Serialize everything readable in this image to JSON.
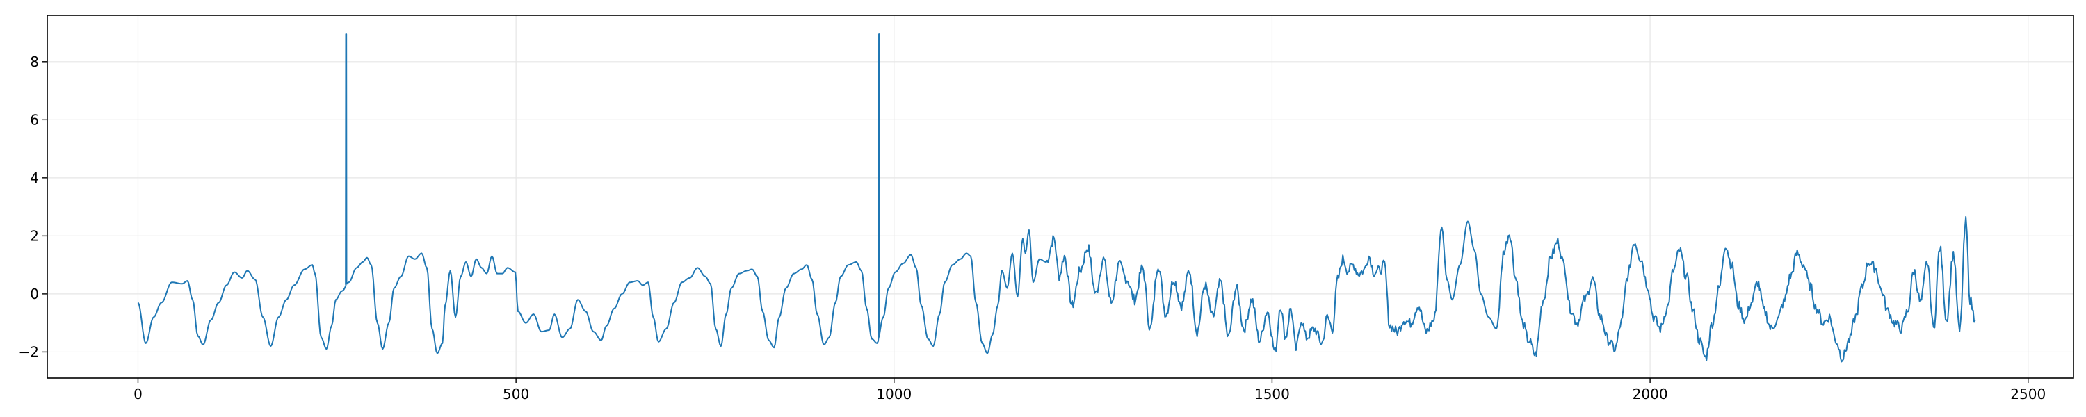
{
  "chart_data": {
    "type": "line",
    "title": "",
    "xlabel": "",
    "ylabel": "",
    "xlim": [
      -120,
      2560
    ],
    "ylim": [
      -2.9,
      9.6
    ],
    "x_ticks": [
      0,
      500,
      1000,
      1500,
      2000,
      2500
    ],
    "y_ticks": [
      -2,
      0,
      2,
      4,
      6,
      8
    ],
    "grid": true,
    "legend": "none",
    "colors": {
      "line": "#1f77b4",
      "grid": "#e6e6e6",
      "axes": "#000000"
    },
    "series": [
      {
        "knots": [
          [
            0,
            -0.3
          ],
          [
            15,
            -1.7
          ],
          [
            30,
            -0.8
          ],
          [
            45,
            -0.3
          ],
          [
            65,
            0.4
          ],
          [
            85,
            0.35
          ],
          [
            95,
            0.45
          ],
          [
            105,
            -0.2
          ],
          [
            115,
            -1.45
          ],
          [
            125,
            -1.75
          ],
          [
            140,
            -0.9
          ],
          [
            155,
            -0.3
          ],
          [
            170,
            0.3
          ],
          [
            185,
            0.75
          ],
          [
            200,
            0.55
          ],
          [
            210,
            0.8
          ],
          [
            225,
            0.5
          ],
          [
            240,
            -0.8
          ],
          [
            255,
            -1.8
          ],
          [
            270,
            -0.8
          ],
          [
            285,
            -0.2
          ],
          [
            300,
            0.3
          ],
          [
            320,
            0.85
          ],
          [
            335,
            1.0
          ],
          [
            340,
            0.7
          ],
          [
            352,
            -1.5
          ],
          [
            362,
            -1.9
          ],
          [
            372,
            -1.1
          ],
          [
            380,
            -0.2
          ],
          [
            392,
            0.1
          ],
          [
            405,
            0.4
          ],
          [
            420,
            0.9
          ],
          [
            432,
            1.1
          ],
          [
            440,
            1.25
          ],
          [
            448,
            1.0
          ],
          [
            460,
            -1.0
          ],
          [
            470,
            -1.9
          ],
          [
            482,
            -1.0
          ],
          [
            492,
            0.2
          ],
          [
            505,
            0.6
          ],
          [
            520,
            1.3
          ],
          [
            532,
            1.2
          ],
          [
            545,
            1.4
          ],
          [
            555,
            0.9
          ],
          [
            565,
            -1.2
          ],
          [
            575,
            -2.05
          ],
          [
            585,
            -1.7
          ],
          [
            590,
            -0.4
          ],
          [
            600,
            0.8
          ],
          [
            610,
            -0.8
          ],
          [
            620,
            0.6
          ],
          [
            630,
            1.1
          ],
          [
            640,
            0.6
          ],
          [
            650,
            1.2
          ],
          [
            660,
            0.9
          ],
          [
            670,
            0.7
          ],
          [
            680,
            1.3
          ],
          [
            690,
            0.7
          ],
          [
            700,
            0.7
          ],
          [
            710,
            0.9
          ],
          [
            725,
            0.75
          ],
          [
            730,
            -0.6
          ],
          [
            745,
            -1.0
          ],
          [
            760,
            -0.7
          ],
          [
            775,
            -1.3
          ],
          [
            790,
            -1.25
          ],
          [
            800,
            -0.7
          ],
          [
            815,
            -1.5
          ],
          [
            830,
            -1.2
          ],
          [
            845,
            -0.2
          ],
          [
            860,
            -0.6
          ],
          [
            875,
            -1.3
          ],
          [
            890,
            -1.6
          ],
          [
            900,
            -1.1
          ],
          [
            915,
            -0.5
          ],
          [
            930,
            0.0
          ],
          [
            945,
            0.4
          ],
          [
            960,
            0.45
          ],
          [
            970,
            0.3
          ],
          [
            980,
            0.4
          ],
          [
            990,
            -0.8
          ],
          [
            1000,
            -1.65
          ],
          [
            1015,
            -1.2
          ],
          [
            1030,
            -0.3
          ],
          [
            1045,
            0.4
          ],
          [
            1060,
            0.55
          ],
          [
            1075,
            0.9
          ],
          [
            1090,
            0.6
          ],
          [
            1100,
            0.35
          ],
          [
            1110,
            -1.2
          ],
          [
            1120,
            -1.8
          ],
          [
            1130,
            -0.7
          ],
          [
            1140,
            0.2
          ],
          [
            1155,
            0.7
          ],
          [
            1170,
            0.8
          ],
          [
            1180,
            0.85
          ],
          [
            1190,
            0.6
          ],
          [
            1200,
            -0.6
          ],
          [
            1212,
            -1.6
          ],
          [
            1222,
            -1.85
          ],
          [
            1232,
            -0.8
          ],
          [
            1245,
            0.2
          ],
          [
            1260,
            0.7
          ],
          [
            1275,
            0.85
          ],
          [
            1285,
            1.0
          ],
          [
            1295,
            0.5
          ],
          [
            1305,
            -0.7
          ],
          [
            1318,
            -1.75
          ],
          [
            1328,
            -1.5
          ],
          [
            1340,
            -0.3
          ],
          [
            1350,
            0.6
          ],
          [
            1365,
            1.0
          ],
          [
            1380,
            1.1
          ],
          [
            1390,
            0.8
          ],
          [
            1400,
            -0.5
          ],
          [
            1410,
            -1.55
          ],
          [
            1420,
            -1.7
          ],
          [
            1432,
            -0.8
          ],
          [
            1442,
            0.2
          ],
          [
            1455,
            0.75
          ],
          [
            1470,
            1.05
          ],
          [
            1485,
            1.35
          ],
          [
            1495,
            0.9
          ],
          [
            1505,
            -0.4
          ],
          [
            1518,
            -1.55
          ],
          [
            1528,
            -1.8
          ],
          [
            1540,
            -0.7
          ],
          [
            1550,
            0.4
          ],
          [
            1565,
            1.0
          ],
          [
            1580,
            1.2
          ],
          [
            1592,
            1.4
          ],
          [
            1600,
            1.3
          ],
          [
            1610,
            -0.3
          ],
          [
            1622,
            -1.7
          ],
          [
            1632,
            -2.05
          ],
          [
            1642,
            -1.4
          ],
          [
            1652,
            -0.4
          ],
          [
            1660,
            0.8
          ],
          [
            1670,
            0.2
          ],
          [
            1680,
            1.4
          ],
          [
            1690,
            -0.1
          ],
          [
            1700,
            1.9
          ],
          [
            1705,
            1.4
          ],
          [
            1712,
            2.2
          ],
          [
            1720,
            0.4
          ],
          [
            1732,
            1.2
          ],
          [
            1745,
            1.1
          ],
          [
            1760,
            1.9
          ],
          [
            1770,
            0.6
          ],
          [
            1780,
            1.3
          ],
          [
            1795,
            -0.4
          ],
          [
            1810,
            0.8
          ],
          [
            1825,
            1.6
          ],
          [
            1840,
            0.0
          ],
          [
            1855,
            1.2
          ],
          [
            1870,
            -0.3
          ],
          [
            1885,
            1.0
          ],
          [
            1900,
            0.5
          ],
          [
            1915,
            -0.2
          ],
          [
            1930,
            0.9
          ],
          [
            1945,
            -1.2
          ],
          [
            1960,
            1.0
          ],
          [
            1975,
            -0.7
          ],
          [
            1990,
            0.5
          ],
          [
            2005,
            -0.4
          ],
          [
            2020,
            0.8
          ],
          [
            2035,
            -1.3
          ],
          [
            2050,
            0.3
          ],
          [
            2065,
            -0.8
          ],
          [
            2080,
            0.4
          ],
          [
            2095,
            -1.5
          ],
          [
            2110,
            0.2
          ],
          [
            2125,
            -1.2
          ],
          [
            2140,
            -0.2
          ],
          [
            2155,
            -1.6
          ],
          [
            2170,
            -0.6
          ],
          [
            2185,
            -2.0
          ],
          [
            2195,
            -0.4
          ],
          [
            2205,
            -1.5
          ],
          [
            2215,
            -0.5
          ],
          [
            2225,
            -1.9
          ],
          [
            2235,
            -0.9
          ],
          [
            2245,
            -1.5
          ],
          [
            2260,
            -1.2
          ],
          [
            2275,
            -1.7
          ],
          [
            2285,
            -0.8
          ],
          [
            2295,
            -1.2
          ],
          [
            2305,
            0.5
          ],
          [
            2315,
            1.2
          ],
          [
            2325,
            0.8
          ],
          [
            2335,
            1.0
          ],
          [
            2345,
            0.7
          ],
          [
            2355,
            0.8
          ],
          [
            2365,
            1.3
          ],
          [
            2375,
            0.75
          ],
          [
            2385,
            0.8
          ],
          [
            2395,
            1.0
          ],
          [
            2405,
            -1.1
          ],
          [
            2420,
            -1.3
          ],
          [
            2432,
            -0.9
          ],
          [
            2445,
            -1.0
          ],
          [
            2460,
            -0.4
          ],
          [
            2475,
            -1.3
          ],
          [
            2490,
            -0.9
          ],
          [
            2505,
            2.3
          ],
          [
            2515,
            0.5
          ],
          [
            2525,
            -0.2
          ],
          [
            2540,
            1.0
          ],
          [
            2555,
            2.5
          ],
          [
            2568,
            1.5
          ],
          [
            2580,
            0.0
          ],
          [
            2595,
            -0.8
          ],
          [
            2610,
            -1.2
          ],
          [
            2625,
            1.5
          ],
          [
            2635,
            2.1
          ],
          [
            2648,
            0.5
          ],
          [
            2660,
            -1.0
          ],
          [
            2672,
            -1.6
          ],
          [
            2685,
            -2.1
          ],
          [
            2700,
            -0.2
          ],
          [
            2715,
            1.3
          ],
          [
            2728,
            1.8
          ],
          [
            2740,
            1.0
          ],
          [
            2752,
            -0.5
          ],
          [
            2765,
            -1.0
          ],
          [
            2780,
            -0.2
          ],
          [
            2795,
            0.5
          ],
          [
            2810,
            -0.8
          ],
          [
            2825,
            -1.6
          ],
          [
            2838,
            -1.9
          ],
          [
            2850,
            -1.0
          ],
          [
            2862,
            0.6
          ],
          [
            2875,
            1.8
          ],
          [
            2888,
            1.2
          ],
          [
            2900,
            0.3
          ],
          [
            2912,
            -0.8
          ],
          [
            2925,
            -1.2
          ],
          [
            2938,
            -0.5
          ],
          [
            2950,
            0.8
          ],
          [
            2962,
            1.5
          ],
          [
            2975,
            0.6
          ],
          [
            2988,
            -0.6
          ],
          [
            3000,
            -1.6
          ],
          [
            3012,
            -2.2
          ],
          [
            3025,
            -1.0
          ],
          [
            3038,
            0.2
          ],
          [
            3050,
            1.7
          ],
          [
            3062,
            1.0
          ],
          [
            3075,
            -0.4
          ],
          [
            3088,
            -0.9
          ],
          [
            3100,
            -0.3
          ],
          [
            3112,
            0.4
          ],
          [
            3125,
            -0.6
          ],
          [
            3138,
            -1.2
          ],
          [
            3150,
            -0.9
          ],
          [
            3162,
            -0.3
          ],
          [
            3175,
            0.6
          ],
          [
            3188,
            1.4
          ],
          [
            3200,
            1.0
          ],
          [
            3212,
            0.3
          ],
          [
            3225,
            -0.5
          ],
          [
            3238,
            -1.0
          ],
          [
            3250,
            -0.8
          ],
          [
            3262,
            -1.6
          ],
          [
            3275,
            -2.2
          ],
          [
            3288,
            -1.6
          ],
          [
            3300,
            -0.8
          ],
          [
            3312,
            0.2
          ],
          [
            3325,
            1.1
          ],
          [
            3338,
            0.9
          ],
          [
            3350,
            0.1
          ],
          [
            3362,
            -0.6
          ],
          [
            3375,
            -1.0
          ],
          [
            3388,
            -1.2
          ],
          [
            3400,
            -0.6
          ],
          [
            3412,
            0.8
          ],
          [
            3425,
            -0.3
          ],
          [
            3438,
            1.1
          ],
          [
            3450,
            -1.2
          ],
          [
            3462,
            1.6
          ],
          [
            3475,
            -0.9
          ],
          [
            3488,
            1.4
          ],
          [
            3500,
            -1.3
          ],
          [
            3512,
            2.5
          ],
          [
            3520,
            -0.2
          ],
          [
            3530,
            -0.9
          ]
        ]
      }
    ],
    "x_scale_note": "knot x in sample index units; mapped onto displayed axis 0..2430",
    "spikes": [
      [
        275,
        8.95
      ],
      [
        980,
        8.95
      ]
    ],
    "x_end": 2430
  }
}
